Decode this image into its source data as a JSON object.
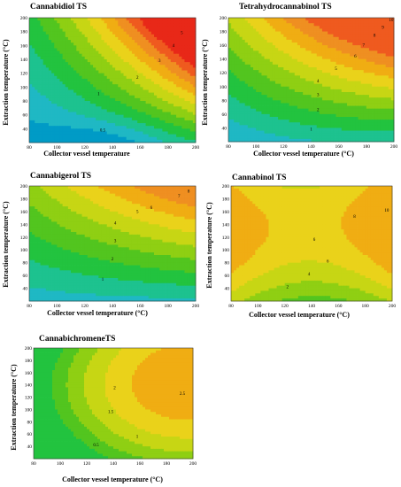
{
  "chart_data": [
    {
      "type": "contour",
      "title": "Cannabidiol TS",
      "xlabel": "Collector vessel temperature",
      "ylabel": "Extraction temperature (°C)",
      "xlim": [
        80,
        200
      ],
      "ylim": [
        20,
        200
      ],
      "xticks": [
        80,
        100,
        120,
        140,
        160,
        180,
        200
      ],
      "yticks": [
        40,
        60,
        80,
        100,
        120,
        140,
        160,
        180,
        200
      ],
      "levels": [
        0.5,
        1,
        1.5,
        2,
        2.5,
        3,
        3.5,
        4,
        4.5,
        5,
        5.5
      ],
      "contour_labels": [
        {
          "text": "0.5",
          "x": 133,
          "y": 38
        },
        {
          "text": "1",
          "x": 130,
          "y": 90
        },
        {
          "text": "2",
          "x": 158,
          "y": 114
        },
        {
          "text": "3",
          "x": 174,
          "y": 138
        },
        {
          "text": "4",
          "x": 184,
          "y": 160
        },
        {
          "text": "5",
          "x": 190,
          "y": 178
        }
      ]
    },
    {
      "type": "contour",
      "title": "Tetrahydrocannabinol TS",
      "xlabel": "Collector vessel temperature  (°C)",
      "ylabel": "Extraction temperature (°C)",
      "xlim": [
        80,
        200
      ],
      "ylim": [
        20,
        200
      ],
      "xticks": [
        80,
        100,
        120,
        140,
        160,
        180,
        200
      ],
      "yticks": [
        40,
        60,
        80,
        100,
        120,
        140,
        160,
        180,
        200
      ],
      "levels": [
        1,
        2,
        3,
        4,
        5,
        6,
        7,
        8,
        9,
        10
      ],
      "contour_labels": [
        {
          "text": "1",
          "x": 140,
          "y": 38
        },
        {
          "text": "2",
          "x": 145,
          "y": 66
        },
        {
          "text": "3",
          "x": 145,
          "y": 88
        },
        {
          "text": "4",
          "x": 145,
          "y": 108
        },
        {
          "text": "5",
          "x": 158,
          "y": 126
        },
        {
          "text": "6",
          "x": 172,
          "y": 144
        },
        {
          "text": "7",
          "x": 178,
          "y": 160
        },
        {
          "text": "8",
          "x": 186,
          "y": 174
        },
        {
          "text": "9",
          "x": 192,
          "y": 186
        },
        {
          "text": "10",
          "x": 198,
          "y": 197
        }
      ]
    },
    {
      "type": "contour",
      "title": "Cannabigerol TS",
      "xlabel": "Collector vessel temperature  (°C)",
      "ylabel": "Extraction temperature (°C)",
      "xlim": [
        80,
        200
      ],
      "ylim": [
        20,
        200
      ],
      "xticks": [
        80,
        100,
        120,
        140,
        160,
        180,
        200
      ],
      "yticks": [
        40,
        60,
        80,
        100,
        120,
        140,
        160,
        180,
        200
      ],
      "levels": [
        1,
        2,
        3,
        4,
        5,
        6,
        7,
        8
      ],
      "contour_labels": [
        {
          "text": "1",
          "x": 133,
          "y": 54
        },
        {
          "text": "2",
          "x": 140,
          "y": 86
        },
        {
          "text": "3",
          "x": 142,
          "y": 114
        },
        {
          "text": "4",
          "x": 142,
          "y": 142
        },
        {
          "text": "5",
          "x": 158,
          "y": 160
        },
        {
          "text": "6",
          "x": 168,
          "y": 166
        },
        {
          "text": "7",
          "x": 188,
          "y": 184
        },
        {
          "text": "8",
          "x": 195,
          "y": 192
        }
      ]
    },
    {
      "type": "contour",
      "title": "Cannabinol TS",
      "xlabel": "Collector vessel temperature  (°C)",
      "ylabel": "Extraction temperature (°C)",
      "xlim": [
        80,
        200
      ],
      "ylim": [
        20,
        200
      ],
      "xticks": [
        80,
        100,
        120,
        140,
        160,
        180,
        200
      ],
      "yticks": [
        40,
        60,
        80,
        100,
        120,
        140,
        160,
        180,
        200
      ],
      "levels": [
        2,
        4,
        6,
        8,
        10
      ],
      "contour_labels": [
        {
          "text": "2",
          "x": 122,
          "y": 42
        },
        {
          "text": "4",
          "x": 138,
          "y": 62
        },
        {
          "text": "6",
          "x": 152,
          "y": 82
        },
        {
          "text": "6",
          "x": 142,
          "y": 116
        },
        {
          "text": "8",
          "x": 172,
          "y": 152
        },
        {
          "text": "10",
          "x": 196,
          "y": 162
        }
      ]
    },
    {
      "type": "contour",
      "title": "CannabichromeneTS",
      "xlabel": "Collector vessel temperature  (°C)",
      "ylabel": "Extraction temperature (°C)",
      "xlim": [
        80,
        200
      ],
      "ylim": [
        20,
        200
      ],
      "xticks": [
        80,
        100,
        120,
        140,
        160,
        180,
        200
      ],
      "yticks": [
        40,
        60,
        80,
        100,
        120,
        140,
        160,
        180,
        200
      ],
      "levels": [
        0.5,
        1,
        1.5,
        2,
        2.5
      ],
      "contour_labels": [
        {
          "text": "0.5",
          "x": 127,
          "y": 42
        },
        {
          "text": "1",
          "x": 158,
          "y": 56
        },
        {
          "text": "1.5",
          "x": 138,
          "y": 96
        },
        {
          "text": "2",
          "x": 141,
          "y": 135
        },
        {
          "text": "2.5",
          "x": 192,
          "y": 126
        }
      ]
    }
  ]
}
